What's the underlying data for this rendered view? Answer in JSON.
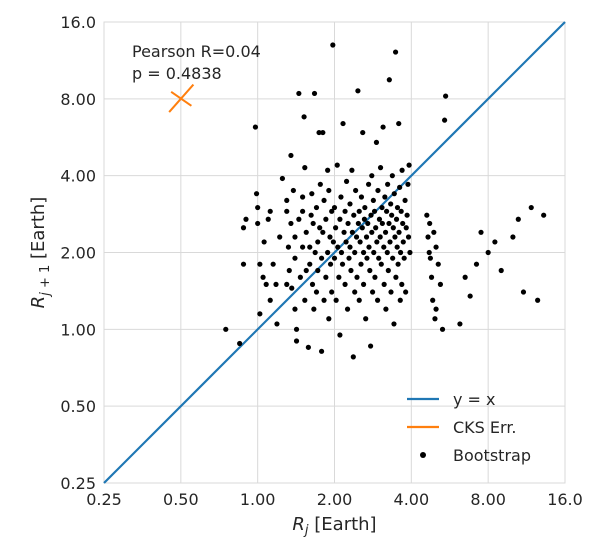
{
  "chart_data": {
    "type": "scatter",
    "xlabel": "R_j [Earth]",
    "ylabel": "R_{j+1} [Earth]",
    "xscale": "log2",
    "yscale": "log2",
    "xlim": [
      0.25,
      16.0
    ],
    "ylim": [
      0.25,
      16.0
    ],
    "x_ticks": [
      0.25,
      0.5,
      1,
      2,
      4,
      8,
      16
    ],
    "y_ticks": [
      0.25,
      0.5,
      1,
      2,
      4,
      8,
      16
    ],
    "x_tick_labels": [
      "0.25",
      "0.50",
      "1.00",
      "2.00",
      "4.00",
      "8.00",
      "16.0"
    ],
    "y_tick_labels": [
      "0.25",
      "0.50",
      "1.00",
      "2.00",
      "4.00",
      "8.00",
      "16.0"
    ],
    "grid": true,
    "annotation": {
      "line1": "Pearson R=0.04",
      "line2": "p = 0.4838"
    },
    "legend": {
      "placement": "lower-right",
      "entries": [
        "y = x",
        "CKS Err.",
        "Bootstrap"
      ]
    },
    "colors": {
      "identity": "#1f77b4",
      "cks": "#ff7f0e",
      "points": "#000000",
      "grid": "#d9d9d9"
    },
    "identity_line": {
      "name": "y = x",
      "from": [
        0.25,
        0.25
      ],
      "to": [
        16.0,
        16.0
      ]
    },
    "cks_err": {
      "name": "CKS Err.",
      "x": 0.5,
      "y": 8.0,
      "xerr": [
        0.45,
        0.56
      ],
      "yerr": [
        7.1,
        9.1
      ]
    },
    "series": [
      {
        "name": "Bootstrap",
        "points": [
          [
            0.75,
            1.0
          ],
          [
            0.85,
            0.88
          ],
          [
            0.88,
            2.5
          ],
          [
            0.9,
            2.7
          ],
          [
            0.88,
            1.8
          ],
          [
            0.98,
            6.2
          ],
          [
            0.99,
            3.4
          ],
          [
            1.0,
            3.0
          ],
          [
            1.0,
            2.6
          ],
          [
            1.02,
            1.8
          ],
          [
            1.05,
            1.6
          ],
          [
            1.06,
            2.2
          ],
          [
            1.02,
            1.15
          ],
          [
            1.08,
            1.5
          ],
          [
            1.1,
            2.7
          ],
          [
            1.12,
            2.9
          ],
          [
            1.12,
            1.3
          ],
          [
            1.15,
            1.8
          ],
          [
            1.18,
            1.5
          ],
          [
            1.19,
            1.05
          ],
          [
            1.22,
            2.3
          ],
          [
            1.25,
            3.9
          ],
          [
            1.3,
            3.2
          ],
          [
            1.3,
            1.5
          ],
          [
            1.3,
            2.9
          ],
          [
            1.32,
            2.1
          ],
          [
            1.33,
            1.7
          ],
          [
            1.35,
            2.6
          ],
          [
            1.36,
            1.45
          ],
          [
            1.35,
            4.8
          ],
          [
            1.38,
            3.5
          ],
          [
            1.4,
            2.3
          ],
          [
            1.4,
            1.9
          ],
          [
            1.4,
            1.2
          ],
          [
            1.42,
            0.9
          ],
          [
            1.42,
            1.0
          ],
          [
            1.45,
            8.4
          ],
          [
            1.45,
            2.7
          ],
          [
            1.47,
            1.6
          ],
          [
            1.5,
            2.1
          ],
          [
            1.5,
            3.3
          ],
          [
            1.5,
            2.9
          ],
          [
            1.52,
            6.8
          ],
          [
            1.53,
            4.3
          ],
          [
            1.53,
            1.3
          ],
          [
            1.55,
            1.7
          ],
          [
            1.55,
            2.4
          ],
          [
            1.58,
            0.85
          ],
          [
            1.6,
            1.8
          ],
          [
            1.6,
            2.1
          ],
          [
            1.62,
            2.8
          ],
          [
            1.63,
            3.4
          ],
          [
            1.64,
            1.5
          ],
          [
            1.65,
            2.6
          ],
          [
            1.66,
            1.2
          ],
          [
            1.67,
            8.4
          ],
          [
            1.68,
            2.0
          ],
          [
            1.7,
            1.4
          ],
          [
            1.7,
            3.0
          ],
          [
            1.72,
            2.2
          ],
          [
            1.72,
            1.7
          ],
          [
            1.74,
            5.9
          ],
          [
            1.75,
            2.5
          ],
          [
            1.76,
            3.7
          ],
          [
            1.78,
            1.9
          ],
          [
            1.78,
            0.82
          ],
          [
            1.8,
            2.4
          ],
          [
            1.8,
            5.9
          ],
          [
            1.82,
            1.3
          ],
          [
            1.82,
            3.2
          ],
          [
            1.85,
            2.7
          ],
          [
            1.85,
            1.6
          ],
          [
            1.88,
            2.0
          ],
          [
            1.88,
            4.2
          ],
          [
            1.9,
            3.5
          ],
          [
            1.9,
            1.1
          ],
          [
            1.92,
            2.3
          ],
          [
            1.93,
            1.8
          ],
          [
            1.95,
            2.9
          ],
          [
            1.95,
            1.4
          ],
          [
            1.97,
            13.0
          ],
          [
            1.98,
            2.2
          ],
          [
            2.0,
            1.9
          ],
          [
            2.0,
            3.0
          ],
          [
            2.02,
            2.5
          ],
          [
            2.03,
            1.3
          ],
          [
            2.05,
            4.4
          ],
          [
            2.06,
            2.1
          ],
          [
            2.08,
            1.6
          ],
          [
            2.1,
            2.7
          ],
          [
            2.1,
            0.95
          ],
          [
            2.12,
            3.3
          ],
          [
            2.13,
            2.0
          ],
          [
            2.15,
            1.8
          ],
          [
            2.16,
            6.4
          ],
          [
            2.18,
            2.4
          ],
          [
            2.2,
            1.5
          ],
          [
            2.2,
            2.9
          ],
          [
            2.22,
            2.2
          ],
          [
            2.23,
            3.8
          ],
          [
            2.25,
            1.2
          ],
          [
            2.26,
            2.6
          ],
          [
            2.28,
            1.9
          ],
          [
            2.3,
            2.1
          ],
          [
            2.3,
            3.1
          ],
          [
            2.32,
            1.7
          ],
          [
            2.34,
            4.2
          ],
          [
            2.35,
            2.4
          ],
          [
            2.37,
            0.78
          ],
          [
            2.38,
            2.8
          ],
          [
            2.4,
            1.4
          ],
          [
            2.4,
            2.0
          ],
          [
            2.42,
            3.5
          ],
          [
            2.44,
            2.3
          ],
          [
            2.45,
            1.6
          ],
          [
            2.47,
            8.6
          ],
          [
            2.48,
            2.6
          ],
          [
            2.5,
            2.9
          ],
          [
            2.5,
            1.3
          ],
          [
            2.52,
            2.2
          ],
          [
            2.54,
            1.8
          ],
          [
            2.55,
            3.3
          ],
          [
            2.57,
            2.5
          ],
          [
            2.58,
            5.9
          ],
          [
            2.6,
            2.0
          ],
          [
            2.6,
            1.5
          ],
          [
            2.62,
            2.7
          ],
          [
            2.63,
            3.0
          ],
          [
            2.65,
            1.1
          ],
          [
            2.67,
            2.3
          ],
          [
            2.68,
            1.9
          ],
          [
            2.7,
            2.6
          ],
          [
            2.72,
            3.7
          ],
          [
            2.73,
            2.1
          ],
          [
            2.75,
            1.7
          ],
          [
            2.77,
            0.86
          ],
          [
            2.78,
            2.8
          ],
          [
            2.8,
            4.0
          ],
          [
            2.8,
            2.4
          ],
          [
            2.82,
            1.4
          ],
          [
            2.84,
            3.2
          ],
          [
            2.85,
            2.0
          ],
          [
            2.87,
            2.9
          ],
          [
            2.88,
            1.6
          ],
          [
            2.9,
            2.5
          ],
          [
            2.92,
            5.4
          ],
          [
            2.93,
            2.2
          ],
          [
            2.95,
            1.3
          ],
          [
            2.96,
            3.5
          ],
          [
            2.98,
            1.9
          ],
          [
            3.0,
            2.7
          ],
          [
            3.02,
            2.3
          ],
          [
            3.03,
            4.3
          ],
          [
            3.05,
            1.8
          ],
          [
            3.07,
            3.0
          ],
          [
            3.08,
            2.6
          ],
          [
            3.1,
            6.2
          ],
          [
            3.12,
            2.1
          ],
          [
            3.13,
            1.5
          ],
          [
            3.15,
            3.3
          ],
          [
            3.17,
            2.4
          ],
          [
            3.18,
            1.2
          ],
          [
            3.2,
            2.9
          ],
          [
            3.22,
            2.0
          ],
          [
            3.23,
            3.7
          ],
          [
            3.25,
            1.7
          ],
          [
            3.27,
            2.6
          ],
          [
            3.28,
            9.5
          ],
          [
            3.3,
            2.2
          ],
          [
            3.32,
            3.1
          ],
          [
            3.33,
            1.4
          ],
          [
            3.35,
            2.8
          ],
          [
            3.37,
            4.0
          ],
          [
            3.38,
            1.9
          ],
          [
            3.4,
            2.5
          ],
          [
            3.42,
            1.05
          ],
          [
            3.43,
            3.4
          ],
          [
            3.45,
            2.3
          ],
          [
            3.47,
            12.2
          ],
          [
            3.48,
            1.6
          ],
          [
            3.5,
            2.7
          ],
          [
            3.52,
            2.1
          ],
          [
            3.53,
            3.0
          ],
          [
            3.55,
            1.8
          ],
          [
            3.57,
            6.4
          ],
          [
            3.58,
            2.4
          ],
          [
            3.6,
            3.6
          ],
          [
            3.62,
            1.3
          ],
          [
            3.63,
            2.0
          ],
          [
            3.65,
            2.9
          ],
          [
            3.67,
            1.5
          ],
          [
            3.68,
            4.2
          ],
          [
            3.7,
            2.6
          ],
          [
            3.72,
            2.2
          ],
          [
            3.75,
            1.9
          ],
          [
            3.78,
            3.2
          ],
          [
            3.8,
            1.4
          ],
          [
            3.82,
            2.5
          ],
          [
            3.85,
            2.8
          ],
          [
            3.88,
            3.7
          ],
          [
            3.9,
            2.3
          ],
          [
            3.92,
            4.4
          ],
          [
            3.95,
            2.0
          ],
          [
            4.6,
            2.8
          ],
          [
            4.65,
            2.3
          ],
          [
            4.7,
            2.0
          ],
          [
            4.72,
            2.6
          ],
          [
            4.75,
            1.9
          ],
          [
            4.8,
            1.6
          ],
          [
            4.85,
            1.3
          ],
          [
            4.9,
            2.4
          ],
          [
            4.95,
            1.1
          ],
          [
            5.0,
            1.2
          ],
          [
            5.0,
            2.1
          ],
          [
            5.1,
            1.8
          ],
          [
            5.2,
            1.5
          ],
          [
            5.3,
            1.0
          ],
          [
            5.4,
            6.6
          ],
          [
            5.45,
            8.2
          ],
          [
            6.2,
            1.05
          ],
          [
            6.5,
            1.6
          ],
          [
            6.8,
            1.35
          ],
          [
            7.2,
            1.8
          ],
          [
            7.5,
            2.4
          ],
          [
            8.0,
            2.0
          ],
          [
            8.5,
            2.2
          ],
          [
            9.0,
            1.7
          ],
          [
            10.0,
            2.3
          ],
          [
            10.5,
            2.7
          ],
          [
            11.0,
            1.4
          ],
          [
            11.8,
            3.0
          ],
          [
            12.5,
            1.3
          ],
          [
            13.2,
            2.8
          ]
        ]
      }
    ]
  }
}
